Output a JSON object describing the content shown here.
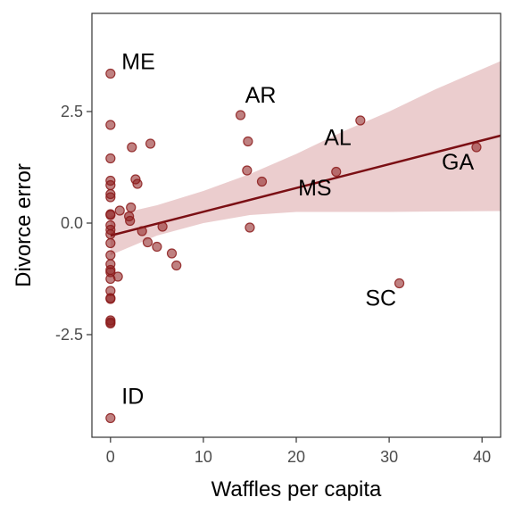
{
  "chart_data": {
    "type": "scatter",
    "xlabel": "Waffles per capita",
    "ylabel": "Divorce error",
    "xlim": [
      -2,
      42
    ],
    "ylim": [
      -4.8,
      4.7
    ],
    "x_ticks": [
      0,
      10,
      20,
      30,
      40
    ],
    "y_ticks": [
      -2.5,
      0.0,
      2.5
    ],
    "x_tick_labels": [
      "0",
      "10",
      "20",
      "30",
      "40"
    ],
    "y_tick_labels": [
      "-2.5",
      "0.0",
      "2.5"
    ],
    "grid": false,
    "colors": {
      "point": "#8b1a1a",
      "line": "#7b0f14",
      "ribbon": "#e8c4c6"
    },
    "points": [
      {
        "x": 0,
        "y": 3.35
      },
      {
        "x": 0,
        "y": 2.2
      },
      {
        "x": 0,
        "y": 1.45
      },
      {
        "x": 0,
        "y": 0.95
      },
      {
        "x": 0,
        "y": 0.85
      },
      {
        "x": 0,
        "y": 0.65
      },
      {
        "x": 0,
        "y": 0.58
      },
      {
        "x": 0,
        "y": 0.2
      },
      {
        "x": 0,
        "y": 0.18
      },
      {
        "x": 0,
        "y": -0.05
      },
      {
        "x": 0,
        "y": -0.15
      },
      {
        "x": 0,
        "y": -0.25
      },
      {
        "x": 0,
        "y": -0.45
      },
      {
        "x": 0,
        "y": -0.72
      },
      {
        "x": 0,
        "y": -0.92
      },
      {
        "x": 0,
        "y": -1.05
      },
      {
        "x": 0,
        "y": -1.1
      },
      {
        "x": 0,
        "y": -1.25
      },
      {
        "x": 0,
        "y": -1.52
      },
      {
        "x": 0,
        "y": -1.68
      },
      {
        "x": 0,
        "y": -1.7
      },
      {
        "x": 0,
        "y": -2.18
      },
      {
        "x": 0,
        "y": -2.22
      },
      {
        "x": 0,
        "y": -2.25
      },
      {
        "x": 0,
        "y": -4.37
      },
      {
        "x": 0.8,
        "y": -1.2
      },
      {
        "x": 1.0,
        "y": 0.28
      },
      {
        "x": 2.0,
        "y": 0.15
      },
      {
        "x": 2.1,
        "y": 0.05
      },
      {
        "x": 2.2,
        "y": 0.35
      },
      {
        "x": 2.3,
        "y": 1.7
      },
      {
        "x": 2.7,
        "y": 0.98
      },
      {
        "x": 2.9,
        "y": 0.88
      },
      {
        "x": 3.4,
        "y": -0.18
      },
      {
        "x": 4.0,
        "y": -0.43
      },
      {
        "x": 4.3,
        "y": 1.78
      },
      {
        "x": 5.0,
        "y": -0.53
      },
      {
        "x": 5.6,
        "y": -0.08
      },
      {
        "x": 6.6,
        "y": -0.68
      },
      {
        "x": 7.1,
        "y": -0.95
      },
      {
        "x": 14.0,
        "y": 2.42
      },
      {
        "x": 14.7,
        "y": 1.18
      },
      {
        "x": 14.8,
        "y": 1.83
      },
      {
        "x": 15.0,
        "y": -0.1
      },
      {
        "x": 16.3,
        "y": 0.93
      },
      {
        "x": 24.3,
        "y": 1.15
      },
      {
        "x": 26.9,
        "y": 2.3
      },
      {
        "x": 31.1,
        "y": -1.35
      },
      {
        "x": 39.4,
        "y": 1.7
      }
    ],
    "fit_line": {
      "x": [
        0,
        42
      ],
      "y": [
        -0.28,
        1.96
      ]
    },
    "ribbon": {
      "x": [
        0,
        5,
        10,
        15,
        20,
        25,
        30,
        35,
        42
      ],
      "lower": [
        -0.72,
        -0.28,
        0.0,
        0.18,
        0.25,
        0.25,
        0.25,
        0.26,
        0.27
      ],
      "upper": [
        0.16,
        0.4,
        0.72,
        1.1,
        1.55,
        2.05,
        2.5,
        3.0,
        3.63
      ]
    },
    "annotations": [
      {
        "text": "ME",
        "x": 1.2,
        "y": 3.45,
        "anchor": "start"
      },
      {
        "text": "AR",
        "x": 14.5,
        "y": 2.7,
        "anchor": "start"
      },
      {
        "text": "AL",
        "x": 23.0,
        "y": 1.75,
        "anchor": "start"
      },
      {
        "text": "MS",
        "x": 22.0,
        "y": 0.62,
        "anchor": "middle"
      },
      {
        "text": "GA",
        "x": 37.4,
        "y": 1.2,
        "anchor": "middle"
      },
      {
        "text": "SC",
        "x": 29.1,
        "y": -1.85,
        "anchor": "middle"
      },
      {
        "text": "ID",
        "x": 1.2,
        "y": -4.05,
        "anchor": "start"
      }
    ]
  }
}
